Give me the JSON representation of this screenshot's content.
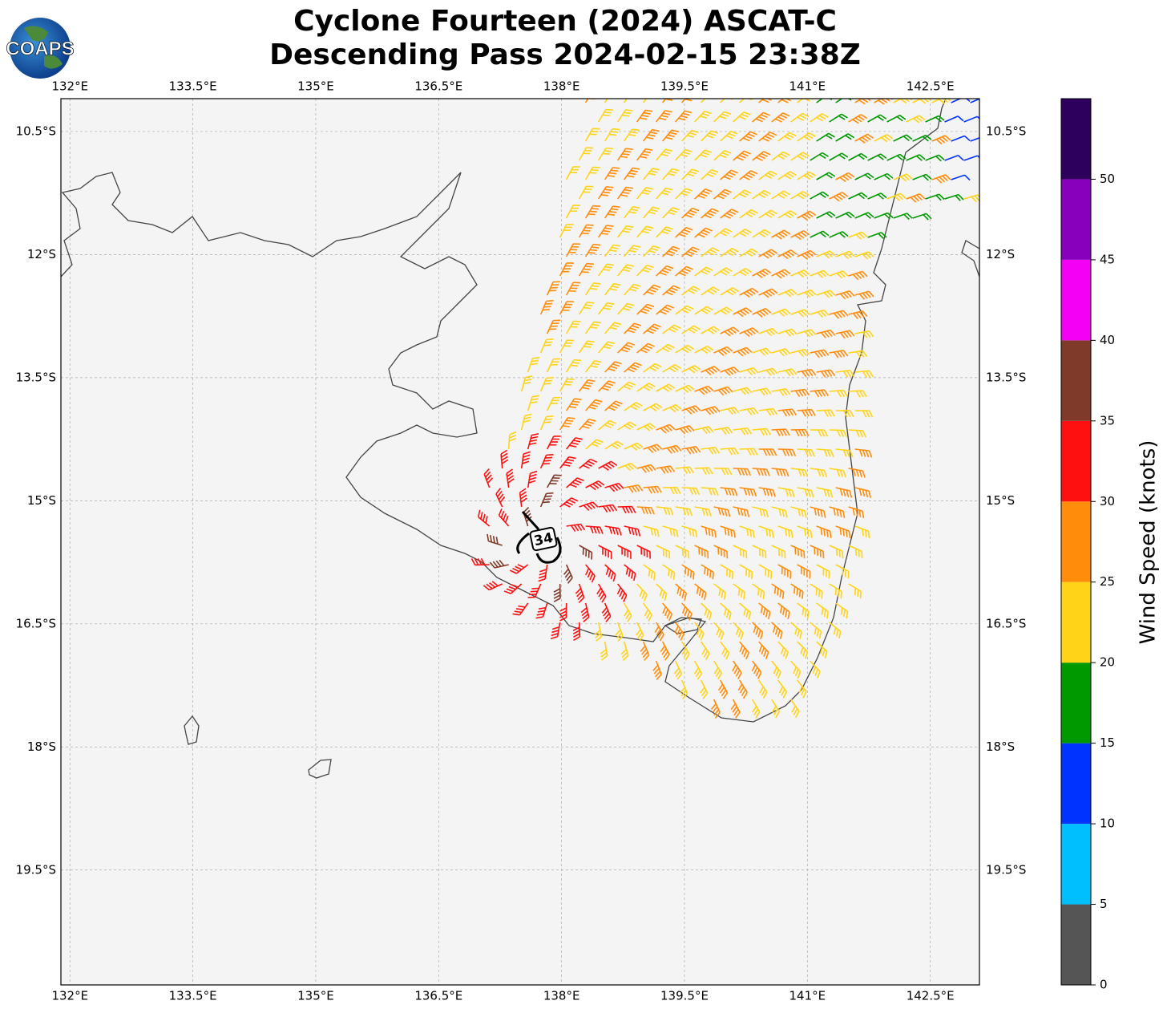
{
  "logo": "COAPS",
  "title": [
    "Cyclone Fourteen (2024) ASCAT-C",
    "Descending Pass 2024-02-15 23:38Z"
  ],
  "map": {
    "lon_range": [
      131.89,
      143.1
    ],
    "lat_range": [
      -10.1,
      -20.9
    ],
    "lon_ticks": [
      {
        "value": 132,
        "label": "132°E"
      },
      {
        "value": 133.5,
        "label": "133.5°E"
      },
      {
        "value": 135,
        "label": "135°E"
      },
      {
        "value": 136.5,
        "label": "136.5°E"
      },
      {
        "value": 138,
        "label": "138°E"
      },
      {
        "value": 139.5,
        "label": "139.5°E"
      },
      {
        "value": 141,
        "label": "141°E"
      },
      {
        "value": 142.5,
        "label": "142.5°E"
      }
    ],
    "lat_ticks": [
      {
        "value": -10.5,
        "label": "10.5°S"
      },
      {
        "value": -12,
        "label": "12°S"
      },
      {
        "value": -13.5,
        "label": "13.5°S"
      },
      {
        "value": -15,
        "label": "15°S"
      },
      {
        "value": -16.5,
        "label": "16.5°S"
      },
      {
        "value": -18,
        "label": "18°S"
      },
      {
        "value": -19.5,
        "label": "19.5°S"
      }
    ],
    "contour_label": "34"
  },
  "colorbar": {
    "label": "Wind Speed (knots)",
    "range": [
      0,
      55
    ],
    "ticks": [
      0,
      5,
      10,
      15,
      20,
      25,
      30,
      35,
      40,
      45,
      50
    ],
    "colors": [
      "#555555",
      "#00bfff",
      "#0033ff",
      "#009900",
      "#ffd318",
      "#ff8c0a",
      "#ff1010",
      "#7f3a2a",
      "#f400f4",
      "#8800bb",
      "#2e005e"
    ]
  }
}
